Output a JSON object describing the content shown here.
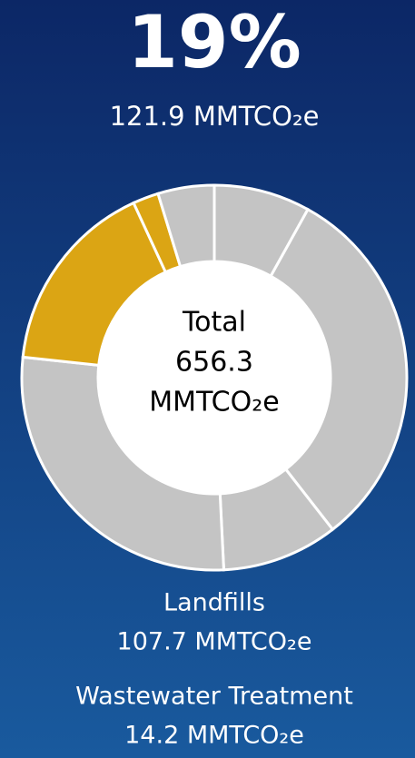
{
  "chart_data": {
    "type": "donut",
    "headline": "19%",
    "headline_detail": "121.9 MMTCO₂e",
    "center_text": [
      "Total",
      "656.3",
      "MMTCO₂e"
    ],
    "categories": [
      null,
      null,
      null,
      null,
      "Landfills",
      "Wastewater Treatment",
      null
    ],
    "values": [
      53,
      206,
      64,
      180.4,
      107.7,
      14.2,
      31
    ],
    "value_labels": [
      null,
      null,
      null,
      null,
      "107.7 MMTCO₂e",
      "14.2 MMTCO₂e",
      null
    ],
    "colors": [
      "#c4c4c4",
      "#c4c4c4",
      "#c4c4c4",
      "#c4c4c4",
      "#dba514",
      "#dba514",
      "#c4c4c4"
    ]
  }
}
